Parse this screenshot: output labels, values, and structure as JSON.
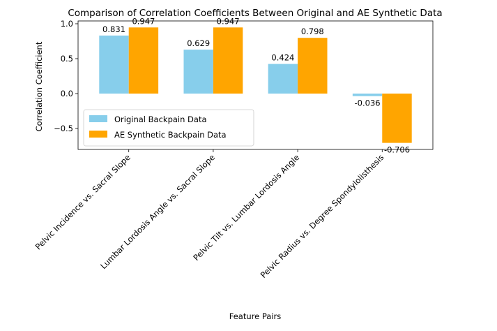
{
  "chart_data": {
    "type": "bar",
    "title": "Comparison of Correlation Coefficients Between Original and AE Synthetic Data",
    "xlabel": "Feature Pairs",
    "ylabel": "Correlation Coefficient",
    "categories": [
      "Pelvic Incidence vs. Sacral Slope",
      "Lumbar Lordosis Angle vs. Sacral Slope",
      "Pelvic Tilt vs. Lumbar Lordosis Angle",
      "Pelvic Radius vs. Degree Spondylolisthesis"
    ],
    "series": [
      {
        "name": "Original Backpain Data",
        "color": "#87CEEB",
        "values": [
          0.831,
          0.629,
          0.424,
          -0.036
        ],
        "labels": [
          "0.831",
          "0.629",
          "0.424",
          "-0.036"
        ]
      },
      {
        "name": "AE Synthetic Backpain Data",
        "color": "#FFA500",
        "values": [
          0.947,
          0.947,
          0.798,
          -0.706
        ],
        "labels": [
          "0.947",
          "0.947",
          "0.798",
          "-0.706"
        ]
      }
    ],
    "ylim": [
      -0.8,
      1.04
    ],
    "yticks": [
      -0.5,
      0.0,
      0.5,
      1.0
    ],
    "ytick_labels": [
      "−0.5",
      "0.0",
      "0.5",
      "1.0"
    ],
    "grid": false,
    "legend_position": "lower-left"
  }
}
